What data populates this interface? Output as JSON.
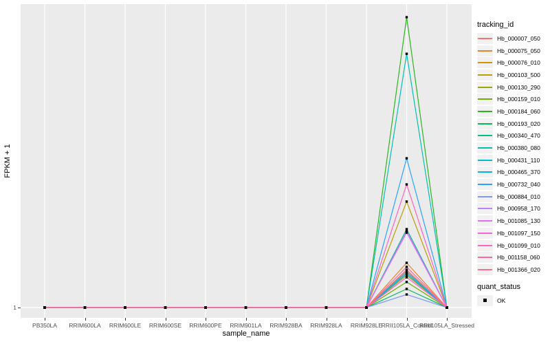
{
  "figure": {
    "background": "#FFFFFF",
    "panel_background": "#EBEBEB",
    "gridline_color": "#FFFFFF",
    "marker_color": "#000000",
    "tick_text_color": "#4d4d4d"
  },
  "axes": {
    "x_title": "sample_name",
    "y_title": "FPKM + 1",
    "y_tick_labels": [
      "1"
    ]
  },
  "legend": {
    "tracking_title": "tracking_id",
    "quant_title": "quant_status",
    "quant_items": [
      {
        "label": "OK"
      }
    ]
  },
  "chart_data": {
    "type": "line",
    "title": "",
    "xlabel": "sample_name",
    "ylabel": "FPKM + 1",
    "legend_position": "right",
    "grid": "white major gridlines on gray panel",
    "marker": "small black square at every data point (quant_status = OK)",
    "y_axis_note": "Only the baseline tick '1' is labeled on the y axis; peak heights are recorded as fraction of panel height above the y=1 baseline at the RRII105LA_Control sample. All other samples sit on the y=1 baseline.",
    "categories": [
      "PB350LA",
      "RRIM600LA",
      "RRIM600LE",
      "RRIM600SE",
      "RRIM600PE",
      "RRIM901LA",
      "RRIM928BA",
      "RRIM928LA",
      "RRIM928LE",
      "RRII105LA_Control",
      "RRII105LA_Stressed"
    ],
    "baseline_value": 1,
    "peak_category": "RRII105LA_Control",
    "series": [
      {
        "name": "Hb_000007_050",
        "color": "#F8766D",
        "peak_fraction": 0.118
      },
      {
        "name": "Hb_000075_050",
        "color": "#E9842C",
        "peak_fraction": 0.154
      },
      {
        "name": "Hb_000076_010",
        "color": "#D69100",
        "peak_fraction": 0.128
      },
      {
        "name": "Hb_000103_500",
        "color": "#BC9D00",
        "peak_fraction": 0.365
      },
      {
        "name": "Hb_000130_290",
        "color": "#9CA700",
        "peak_fraction": 0.111
      },
      {
        "name": "Hb_000159_010",
        "color": "#6FB000",
        "peak_fraction": 0.088
      },
      {
        "name": "Hb_000184_060",
        "color": "#2CB41F",
        "peak_fraction": 1.0
      },
      {
        "name": "Hb_000193_020",
        "color": "#00BC59",
        "peak_fraction": 0.064
      },
      {
        "name": "Hb_000340_470",
        "color": "#00C08B",
        "peak_fraction": 0.27
      },
      {
        "name": "Hb_000380_080",
        "color": "#00C0B3",
        "peak_fraction": 0.874
      },
      {
        "name": "Hb_000431_110",
        "color": "#00BDD2",
        "peak_fraction": 0.123
      },
      {
        "name": "Hb_000465_370",
        "color": "#00B3EC",
        "peak_fraction": 0.116
      },
      {
        "name": "Hb_000732_040",
        "color": "#29A3FF",
        "peak_fraction": 0.514
      },
      {
        "name": "Hb_000884_010",
        "color": "#7F96FF",
        "peak_fraction": 0.045
      },
      {
        "name": "Hb_000958_170",
        "color": "#BC81FF",
        "peak_fraction": 0.263
      },
      {
        "name": "Hb_001085_130",
        "color": "#E26EF7",
        "peak_fraction": 0.258
      },
      {
        "name": "Hb_001097_150",
        "color": "#F763DF",
        "peak_fraction": 0.104
      },
      {
        "name": "Hb_001099_010",
        "color": "#FF62C1",
        "peak_fraction": 0.424
      },
      {
        "name": "Hb_001158_060",
        "color": "#FF68A1",
        "peak_fraction": 0.14
      },
      {
        "name": "Hb_001366_020",
        "color": "#FF6E8E",
        "peak_fraction": 0.13
      }
    ]
  }
}
